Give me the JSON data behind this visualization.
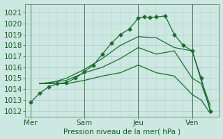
{
  "xlabel": "Pression niveau de la mer( hPa )",
  "background_color": "#cce8e0",
  "grid_color": "#aacfc8",
  "line_color": "#1a6b2e",
  "ylim_min": 1011.5,
  "ylim_max": 1021.8,
  "xlim_min": -0.3,
  "xlim_max": 10.5,
  "yticks": [
    1012,
    1013,
    1014,
    1015,
    1016,
    1017,
    1018,
    1019,
    1020,
    1021
  ],
  "day_labels": [
    "Mer",
    "Sam",
    "Jeu",
    "Ven"
  ],
  "day_positions": [
    0,
    3,
    6,
    9
  ],
  "vline_color": "#4a7a60",
  "line1_x": [
    0,
    0.5,
    1,
    1.5,
    2,
    2.5,
    3,
    3.5,
    4,
    4.5,
    5,
    5.5,
    6,
    6.33,
    6.66,
    7,
    7.5,
    8,
    8.5,
    9,
    9.5,
    10
  ],
  "line1_y": [
    1012.8,
    1013.6,
    1014.2,
    1014.5,
    1014.6,
    1015.0,
    1015.6,
    1016.2,
    1017.2,
    1018.2,
    1019.0,
    1019.5,
    1020.5,
    1020.6,
    1020.55,
    1020.6,
    1020.7,
    1019.0,
    1018.0,
    1017.5,
    1015.0,
    1012.0
  ],
  "line2_x": [
    0.5,
    1,
    2,
    3,
    4,
    5,
    6,
    7,
    8,
    9,
    9.5,
    10
  ],
  "line2_y": [
    1014.5,
    1014.5,
    1015.0,
    1015.8,
    1016.8,
    1018.0,
    1018.8,
    1018.7,
    1017.8,
    1017.5,
    1014.8,
    1012.5
  ],
  "line3_x": [
    0.5,
    2,
    3,
    4,
    5,
    6,
    7,
    8,
    9,
    9.5,
    10
  ],
  "line3_y": [
    1014.5,
    1014.8,
    1015.5,
    1016.0,
    1016.8,
    1017.8,
    1017.2,
    1017.5,
    1015.0,
    1014.5,
    1012.2
  ],
  "line4_x": [
    0.5,
    2,
    3,
    4,
    5,
    6,
    7,
    8,
    9,
    9.5,
    10
  ],
  "line4_y": [
    1014.5,
    1014.5,
    1014.8,
    1015.2,
    1015.5,
    1016.2,
    1015.5,
    1015.2,
    1013.5,
    1013.0,
    1011.8
  ],
  "font_color": "#1a5c28",
  "font_size": 7.5
}
